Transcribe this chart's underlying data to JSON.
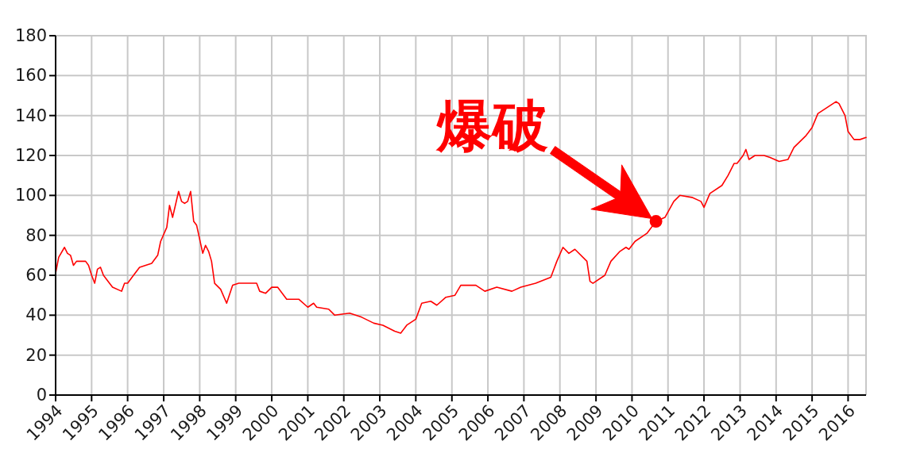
{
  "chart_data": {
    "type": "line",
    "x": [
      "1994-01",
      "1994-02",
      "1994-04",
      "1994-05",
      "1994-06",
      "1994-07",
      "1994-08",
      "1994-11",
      "1994-12",
      "1995-01",
      "1995-02",
      "1995-03",
      "1995-04",
      "1995-05",
      "1995-07",
      "1995-08",
      "1995-11",
      "1995-12",
      "1996-01",
      "1996-03",
      "1996-05",
      "1996-07",
      "1996-09",
      "1996-11",
      "1996-12",
      "1997-02",
      "1997-03",
      "1997-04",
      "1997-06",
      "1997-07",
      "1997-08",
      "1997-09",
      "1997-10",
      "1997-11",
      "1997-12",
      "1998-02",
      "1998-03",
      "1998-04",
      "1998-05",
      "1998-06",
      "1998-08",
      "1998-10",
      "1998-12",
      "1999-02",
      "1999-05",
      "1999-06",
      "1999-08",
      "1999-09",
      "1999-11",
      "2000-01",
      "2000-03",
      "2000-06",
      "2000-08",
      "2000-10",
      "2001-01",
      "2001-03",
      "2001-04",
      "2001-08",
      "2001-10",
      "2002-03",
      "2002-07",
      "2002-11",
      "2003-02",
      "2003-06",
      "2003-08",
      "2003-10",
      "2004-01",
      "2004-03",
      "2004-06",
      "2004-08",
      "2004-11",
      "2005-02",
      "2005-04",
      "2005-09",
      "2005-12",
      "2006-04",
      "2006-09",
      "2006-12",
      "2007-05",
      "2007-10",
      "2007-12",
      "2008-02",
      "2008-04",
      "2008-06",
      "2008-10",
      "2008-11",
      "2008-12",
      "2009-04",
      "2009-06",
      "2009-09",
      "2009-11",
      "2009-12",
      "2010-02",
      "2010-06",
      "2010-09",
      "2010-12",
      "2011-03",
      "2011-05",
      "2011-09",
      "2011-12",
      "2012-01",
      "2012-03",
      "2012-07",
      "2012-09",
      "2012-11",
      "2012-12",
      "2013-02",
      "2013-03",
      "2013-04",
      "2013-06",
      "2013-09",
      "2013-11",
      "2014-02",
      "2014-05",
      "2014-07",
      "2014-11",
      "2015-01",
      "2015-03",
      "2015-06",
      "2015-09",
      "2015-10",
      "2015-12",
      "2016-01",
      "2016-03",
      "2016-05",
      "2016-07"
    ],
    "series": [
      {
        "color": "#ff0000",
        "values": [
          61,
          69,
          74,
          71,
          70,
          65,
          67,
          67,
          65,
          60,
          56,
          63,
          64,
          60,
          56,
          54,
          52,
          56,
          56,
          60,
          64,
          65,
          66,
          70,
          77,
          84,
          95,
          89,
          102,
          97,
          96,
          97,
          102,
          87,
          85,
          71,
          75,
          72,
          67,
          56,
          53,
          46,
          55,
          56,
          56,
          56,
          56,
          52,
          51,
          54,
          54,
          48,
          48,
          48,
          44,
          46,
          44,
          43,
          40,
          41,
          39,
          36,
          35,
          32,
          31,
          35,
          38,
          46,
          47,
          45,
          49,
          50,
          55,
          55,
          52,
          54,
          52,
          54,
          56,
          59,
          67,
          74,
          71,
          73,
          67,
          57,
          56,
          60,
          67,
          72,
          74,
          73,
          77,
          81,
          87,
          89,
          97,
          100,
          99,
          97,
          94,
          101,
          105,
          110,
          116,
          116,
          120,
          123,
          118,
          120,
          120,
          119,
          117,
          118,
          124,
          130,
          134,
          141,
          144,
          147,
          146,
          140,
          132,
          128,
          128,
          129
        ]
      }
    ],
    "xlim": [
      "1994-01",
      "2016-07"
    ],
    "xticks": [
      "1994",
      "1995",
      "1996",
      "1997",
      "1998",
      "1999",
      "2000",
      "2001",
      "2002",
      "2003",
      "2004",
      "2005",
      "2006",
      "2007",
      "2008",
      "2009",
      "2010",
      "2011",
      "2012",
      "2013",
      "2014",
      "2015",
      "2016"
    ],
    "ylim": [
      0,
      180
    ],
    "yticks": [
      0,
      20,
      40,
      60,
      80,
      100,
      120,
      140,
      160,
      180
    ],
    "grid": true,
    "annotations": [
      {
        "text": "爆破",
        "x": "2010-09",
        "y": 87
      }
    ]
  }
}
